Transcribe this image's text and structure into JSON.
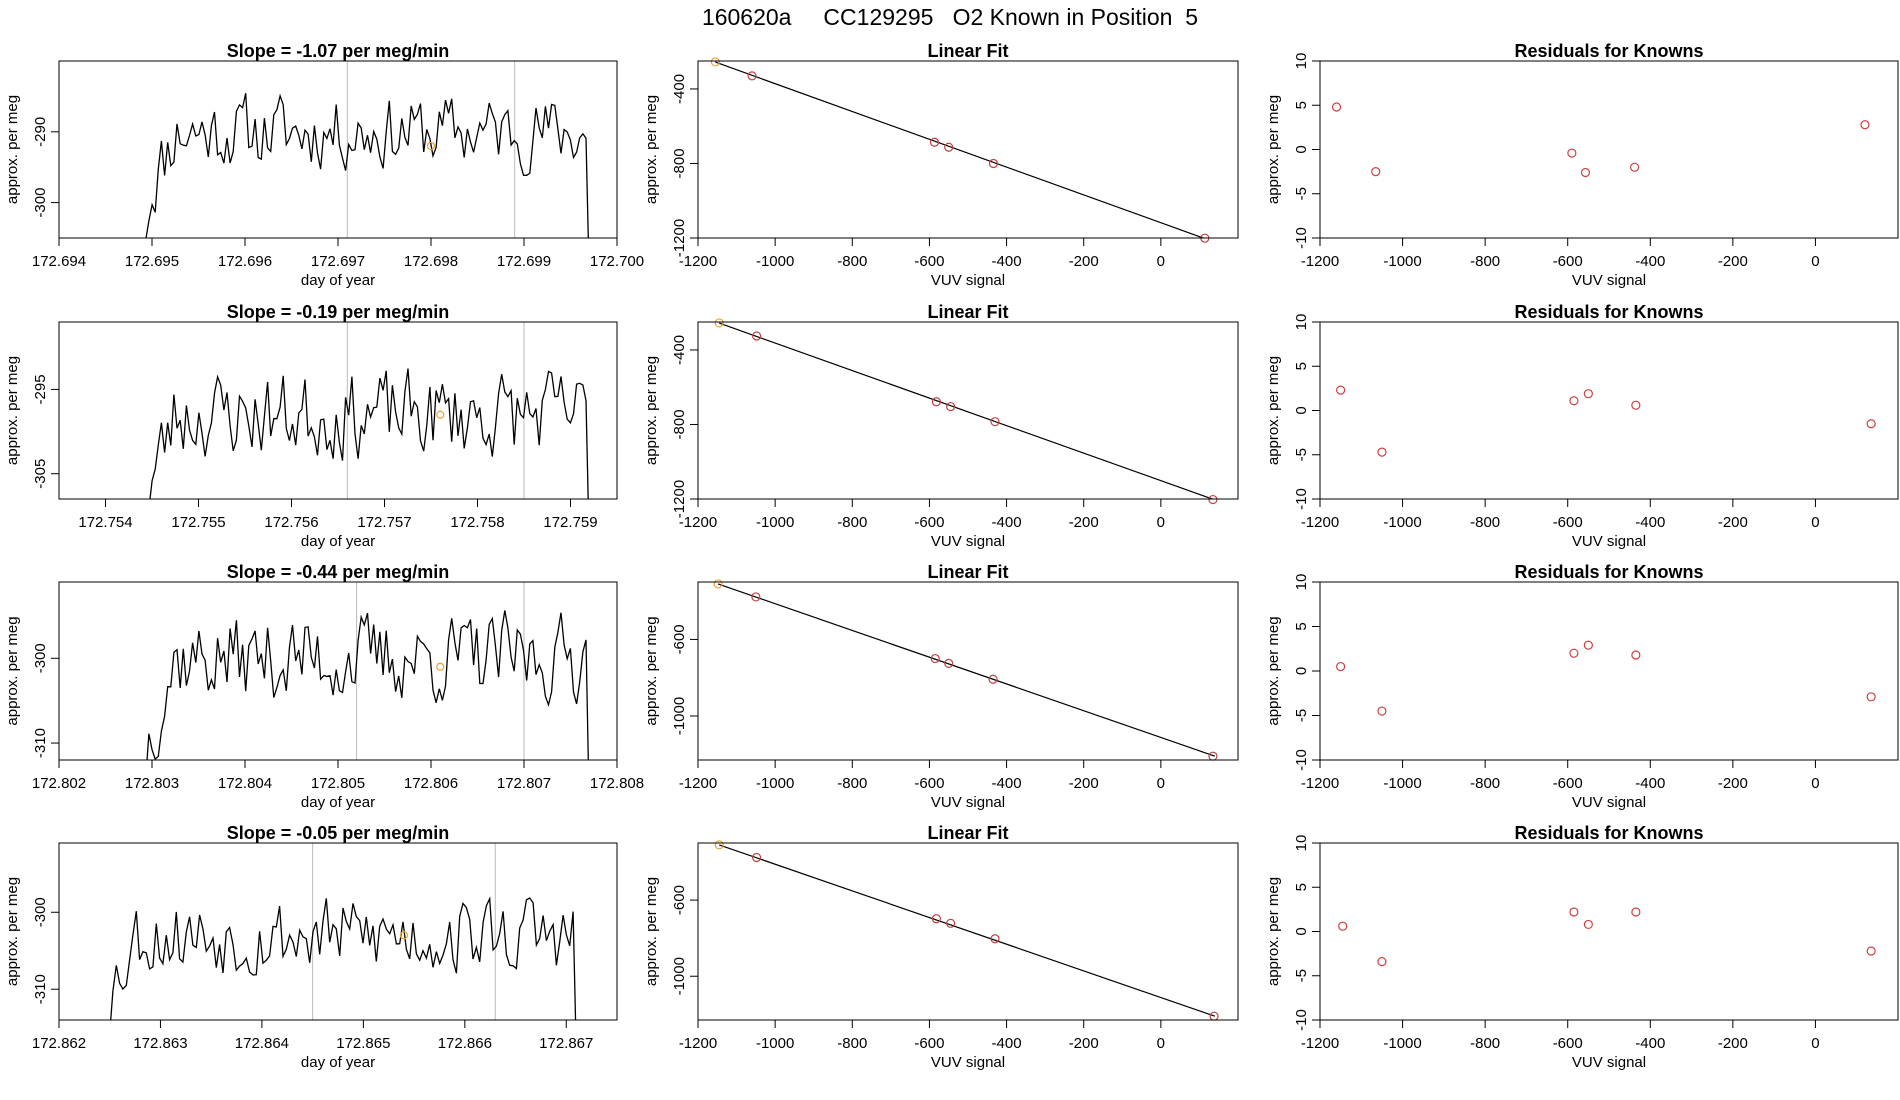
{
  "figure": {
    "title": "160620a     CC129295   O2 Known in Position  5"
  },
  "colors": {
    "line": "#000000",
    "frame": "#000000",
    "vline": "#bbbbbb",
    "highlight_point": "#f0a030",
    "residual_point": "#d04040",
    "fit_point": "#c04040"
  },
  "chart_data": [
    {
      "type": "line",
      "panel": "timeseries",
      "row": 1,
      "title": "Slope =  -1.07  per meg/min",
      "xlabel": "day of year",
      "ylabel": "approx. per meg",
      "xlim": [
        172.694,
        172.7
      ],
      "ylim": [
        -305,
        -280
      ],
      "x_ticks": [
        172.694,
        172.695,
        172.696,
        172.697,
        172.698,
        172.699,
        172.7
      ],
      "y_ticks": [
        -290,
        -300
      ],
      "decimals": 3,
      "vlines": [
        172.6971,
        172.6989
      ],
      "highlight": {
        "x": 172.698,
        "y": -292
      },
      "series": {
        "x_start": 172.6949,
        "x_end": 172.6997,
        "n": 144,
        "seed": 11,
        "base": -290,
        "amp": 5,
        "ymin_clip": -305
      }
    },
    {
      "type": "scatter",
      "panel": "fit",
      "row": 1,
      "title": "Linear Fit",
      "xlabel": "VUV signal",
      "ylabel": "approx. per meg",
      "xlim": [
        -1200,
        200
      ],
      "ylim": [
        -1200,
        -250
      ],
      "x_ticks": [
        -1200,
        -1000,
        -800,
        -600,
        -400,
        -200,
        0
      ],
      "y_ticks": [
        -400,
        -800,
        -1200
      ],
      "points": [
        [
          -1155,
          -255
        ],
        [
          -1060,
          -330
        ],
        [
          -587,
          -686
        ],
        [
          -550,
          -713
        ],
        [
          -434,
          -800
        ],
        [
          114,
          -1201
        ]
      ],
      "highlight_indices": [
        0
      ],
      "fit_line": [
        [
          -1155,
          -256
        ],
        [
          150,
          -1230
        ]
      ]
    },
    {
      "type": "scatter",
      "panel": "residuals",
      "row": 1,
      "title": "Residuals for Knowns",
      "xlabel": "VUV signal",
      "ylabel": "approx. per meg",
      "xlim": [
        -1200,
        200
      ],
      "ylim": [
        -10,
        10
      ],
      "x_ticks": [
        -1200,
        -1000,
        -800,
        -600,
        -400,
        -200,
        0
      ],
      "y_ticks": [
        10,
        5,
        0,
        -5,
        -10
      ],
      "points": [
        [
          -1160,
          4.8
        ],
        [
          -1065,
          -2.5
        ],
        [
          -590,
          -0.4
        ],
        [
          -557,
          -2.6
        ],
        [
          -438,
          -2.0
        ],
        [
          120,
          2.8
        ]
      ]
    },
    {
      "type": "line",
      "panel": "timeseries",
      "row": 2,
      "title": "Slope =  -0.19  per meg/min",
      "xlabel": "day of year",
      "ylabel": "approx. per meg",
      "xlim": [
        172.7535,
        172.7595
      ],
      "ylim": [
        -308,
        -287
      ],
      "x_ticks": [
        172.754,
        172.755,
        172.756,
        172.757,
        172.758,
        172.759
      ],
      "y_ticks": [
        -295,
        -305
      ],
      "decimals": 3,
      "vlines": [
        172.7566,
        172.7585
      ],
      "highlight": {
        "x": 172.7576,
        "y": -298
      },
      "series": {
        "x_start": 172.7544,
        "x_end": 172.7592,
        "n": 144,
        "seed": 23,
        "base": -298,
        "amp": 5,
        "ymin_clip": -308
      }
    },
    {
      "type": "scatter",
      "panel": "fit",
      "row": 2,
      "title": "Linear Fit",
      "xlabel": "VUV signal",
      "ylabel": "approx. per meg",
      "xlim": [
        -1200,
        200
      ],
      "ylim": [
        -1200,
        -250
      ],
      "x_ticks": [
        -1200,
        -1000,
        -800,
        -600,
        -400,
        -200,
        0
      ],
      "y_ticks": [
        -400,
        -800,
        -1200
      ],
      "points": [
        [
          -1145,
          -255
        ],
        [
          -1048,
          -325
        ],
        [
          -582,
          -678
        ],
        [
          -545,
          -704
        ],
        [
          -430,
          -785
        ],
        [
          135,
          -1203
        ]
      ],
      "highlight_indices": [
        0
      ],
      "fit_line": [
        [
          -1145,
          -256
        ],
        [
          140,
          -1205
        ]
      ]
    },
    {
      "type": "scatter",
      "panel": "residuals",
      "row": 2,
      "title": "Residuals for Knowns",
      "xlabel": "VUV signal",
      "ylabel": "approx. per meg",
      "xlim": [
        -1200,
        200
      ],
      "ylim": [
        -10,
        10
      ],
      "x_ticks": [
        -1200,
        -1000,
        -800,
        -600,
        -400,
        -200,
        0
      ],
      "y_ticks": [
        10,
        5,
        0,
        -5,
        -10
      ],
      "points": [
        [
          -1150,
          2.3
        ],
        [
          -1050,
          -4.7
        ],
        [
          -585,
          1.1
        ],
        [
          -550,
          1.9
        ],
        [
          -435,
          0.6
        ],
        [
          135,
          -1.5
        ]
      ]
    },
    {
      "type": "line",
      "panel": "timeseries",
      "row": 3,
      "title": "Slope =  -0.44  per meg/min",
      "xlabel": "day of year",
      "ylabel": "approx. per meg",
      "xlim": [
        172.802,
        172.808
      ],
      "ylim": [
        -312,
        -291
      ],
      "x_ticks": [
        172.802,
        172.803,
        172.804,
        172.805,
        172.806,
        172.807,
        172.808
      ],
      "y_ticks": [
        -300,
        -310
      ],
      "decimals": 3,
      "vlines": [
        172.8052,
        172.807
      ],
      "highlight": {
        "x": 172.8061,
        "y": -301
      },
      "series": {
        "x_start": 172.8029,
        "x_end": 172.8077,
        "n": 144,
        "seed": 37,
        "base": -300,
        "amp": 5,
        "ymin_clip": -312
      }
    },
    {
      "type": "scatter",
      "panel": "fit",
      "row": 3,
      "title": "Linear Fit",
      "xlabel": "VUV signal",
      "ylabel": "approx. per meg",
      "xlim": [
        -1200,
        200
      ],
      "ylim": [
        -1230,
        -300
      ],
      "x_ticks": [
        -1200,
        -1000,
        -800,
        -600,
        -400,
        -200,
        0
      ],
      "y_ticks": [
        -600,
        -1000
      ],
      "points": [
        [
          -1148,
          -310
        ],
        [
          -1050,
          -378
        ],
        [
          -585,
          -700
        ],
        [
          -550,
          -725
        ],
        [
          -435,
          -808
        ],
        [
          135,
          -1210
        ]
      ],
      "highlight_indices": [
        0
      ],
      "fit_line": [
        [
          -1148,
          -310
        ],
        [
          140,
          -1210
        ]
      ]
    },
    {
      "type": "scatter",
      "panel": "residuals",
      "row": 3,
      "title": "Residuals for Knowns",
      "xlabel": "VUV signal",
      "ylabel": "approx. per meg",
      "xlim": [
        -1200,
        200
      ],
      "ylim": [
        -10,
        10
      ],
      "x_ticks": [
        -1200,
        -1000,
        -800,
        -600,
        -400,
        -200,
        0
      ],
      "y_ticks": [
        10,
        5,
        0,
        -5,
        -10
      ],
      "points": [
        [
          -1150,
          0.5
        ],
        [
          -1050,
          -4.5
        ],
        [
          -585,
          2.0
        ],
        [
          -550,
          2.9
        ],
        [
          -435,
          1.8
        ],
        [
          135,
          -2.9
        ]
      ]
    },
    {
      "type": "line",
      "panel": "timeseries",
      "row": 4,
      "title": "Slope =  -0.05  per meg/min",
      "xlabel": "day of year",
      "ylabel": "approx. per meg",
      "xlim": [
        172.862,
        172.8675
      ],
      "ylim": [
        -314,
        -291
      ],
      "x_ticks": [
        172.862,
        172.863,
        172.864,
        172.865,
        172.866,
        172.867
      ],
      "y_ticks": [
        -300,
        -310
      ],
      "decimals": 3,
      "vlines": [
        172.8645,
        172.8663
      ],
      "highlight": {
        "x": 172.8654,
        "y": -303
      },
      "series": {
        "x_start": 172.8624,
        "x_end": 172.8671,
        "n": 144,
        "seed": 53,
        "base": -303,
        "amp": 5,
        "ymin_clip": -314
      }
    },
    {
      "type": "scatter",
      "panel": "fit",
      "row": 4,
      "title": "Linear Fit",
      "xlabel": "VUV signal",
      "ylabel": "approx. per meg",
      "xlim": [
        -1200,
        200
      ],
      "ylim": [
        -1230,
        -300
      ],
      "x_ticks": [
        -1200,
        -1000,
        -800,
        -600,
        -400,
        -200,
        0
      ],
      "y_ticks": [
        -600,
        -1000
      ],
      "points": [
        [
          -1145,
          -310
        ],
        [
          -1048,
          -376
        ],
        [
          -582,
          -698
        ],
        [
          -545,
          -722
        ],
        [
          -430,
          -803
        ],
        [
          138,
          -1210
        ]
      ],
      "highlight_indices": [
        0
      ],
      "fit_line": [
        [
          -1145,
          -310
        ],
        [
          140,
          -1210
        ]
      ]
    },
    {
      "type": "scatter",
      "panel": "residuals",
      "row": 4,
      "title": "Residuals for Knowns",
      "xlabel": "VUV signal",
      "ylabel": "approx. per meg",
      "xlim": [
        -1200,
        200
      ],
      "ylim": [
        -10,
        10
      ],
      "x_ticks": [
        -1200,
        -1000,
        -800,
        -600,
        -400,
        -200,
        0
      ],
      "y_ticks": [
        10,
        5,
        0,
        -5,
        -10
      ],
      "points": [
        [
          -1145,
          0.6
        ],
        [
          -1050,
          -3.4
        ],
        [
          -585,
          2.2
        ],
        [
          -550,
          0.8
        ],
        [
          -435,
          2.2
        ],
        [
          135,
          -2.2
        ]
      ]
    }
  ]
}
